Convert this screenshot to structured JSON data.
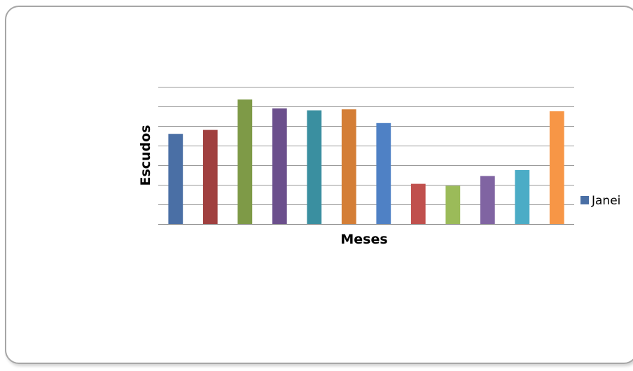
{
  "chart_data": {
    "type": "bar",
    "xlabel": "Meses",
    "ylabel": "Escudos",
    "grid": true,
    "legend_position": "right",
    "categories": [
      "",
      "",
      "",
      "",
      "",
      "",
      "",
      "",
      "",
      "",
      "",
      ""
    ],
    "values": [
      4.6,
      4.8,
      6.35,
      5.9,
      5.8,
      5.85,
      5.15,
      2.05,
      1.95,
      2.45,
      2.75,
      5.75
    ],
    "ylim": [
      0,
      7
    ],
    "bar_colors": [
      "#4a6fa5",
      "#a0403f",
      "#7e9a47",
      "#6b4f8c",
      "#3a8fa0",
      "#d47e36",
      "#4f81c5",
      "#c0504d",
      "#9bbb59",
      "#8064a2",
      "#4bacc6",
      "#f79646"
    ],
    "legend": [
      {
        "label": "Janei",
        "color": "#4a6fa5"
      }
    ]
  }
}
